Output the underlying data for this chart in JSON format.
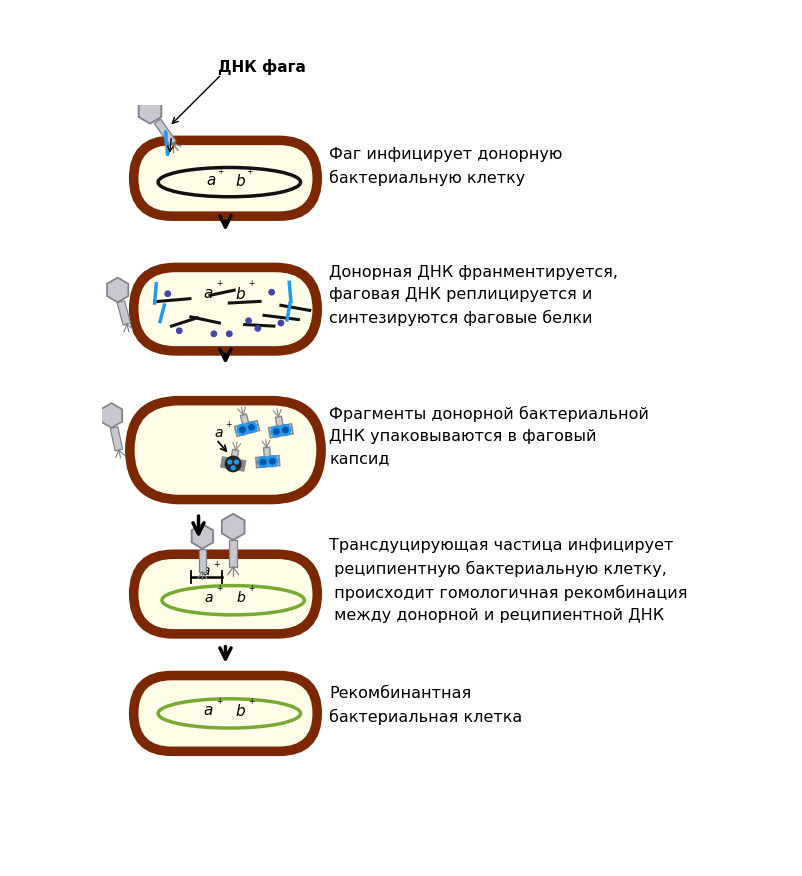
{
  "bg_color": "#ffffff",
  "cell_outer_color": "#7B2800",
  "cell_inner_color": "#FFFDE8",
  "phage_head_color": "#C8C8D0",
  "phage_head_edge": "#808088",
  "dna_black": "#111111",
  "dna_blue": "#1177CC",
  "plasmid_color": "#77AA33",
  "dot_color": "#444466",
  "title1": "Фаг инфицирует донорную\nбактериальную клетку",
  "title2": "Донорная ДНК франментируется,\nфаговая ДНК реплицируется и\nсинтезируются фаговые белки",
  "title3": "Фрагменты донорной бактериальной\nДНК упаковываются в фаговый\nкапсид",
  "title4": "Трансдуцирующая частица инфицирует\n реципиентную бактериальную клетку,\n происходит гомологичная рекомбинация\n между донорной и реципиентной ДНК",
  "title5": "Рекомбинантная\nбактериальная клетка",
  "label_dnk_faga": "ДНК фага"
}
